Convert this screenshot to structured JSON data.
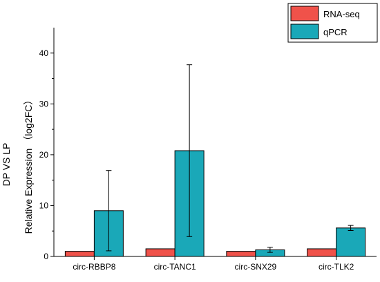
{
  "chart_data": {
    "type": "bar",
    "categories": [
      "circ-RBBP8",
      "circ-TANC1",
      "circ-SNX29",
      "circ-TLK2"
    ],
    "series": [
      {
        "name": "RNA-seq",
        "values": [
          1.0,
          1.5,
          1.0,
          1.5
        ],
        "color": "#f0524a"
      },
      {
        "name": "qPCR",
        "values": [
          9.0,
          20.8,
          1.3,
          5.6
        ],
        "error": [
          7.9,
          16.9,
          0.5,
          0.5
        ],
        "color": "#1aa8b8"
      }
    ],
    "ylabel_line1": "DP VS LP",
    "ylabel_line2": "Relative Expression （log2FC）",
    "ylim": [
      0,
      45
    ],
    "yticks": [
      0,
      10,
      20,
      30,
      40
    ],
    "legend_position": "top-right",
    "grid": false
  }
}
